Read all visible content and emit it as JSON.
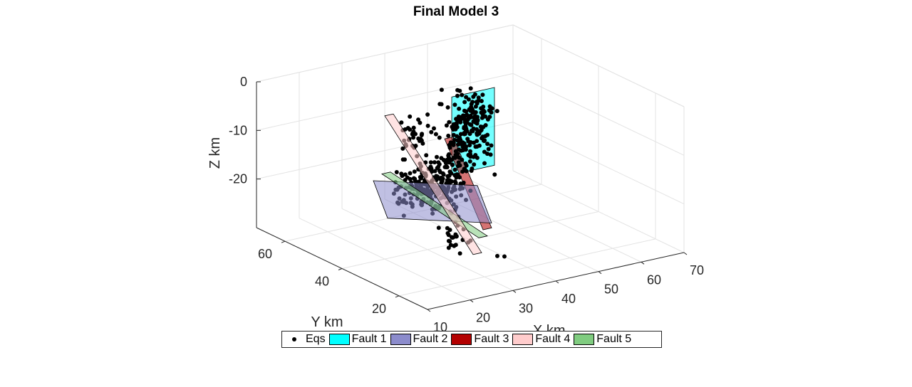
{
  "chart_data": {
    "type": "scatter3d",
    "title": "Final Model 3",
    "xlabel": "X km",
    "ylabel": "Y km",
    "zlabel": "Z km",
    "xlim": [
      10,
      70
    ],
    "ylim": [
      10,
      70
    ],
    "zlim": [
      -30,
      0
    ],
    "xticks": [
      "10",
      "20",
      "30",
      "40",
      "50",
      "60",
      "70"
    ],
    "yticks": [
      "20",
      "40",
      "60"
    ],
    "zticks": [
      "0",
      "-10",
      "-20"
    ],
    "grid": true,
    "legend_position": "bottom",
    "legend": [
      "Eqs",
      "Fault 1",
      "Fault 2",
      "Fault 3",
      "Fault 4",
      "Fault 5"
    ],
    "faults": [
      {
        "name": "Fault 1",
        "color": "#00ffff",
        "corners": [
          [
            41,
            48,
            -3
          ],
          [
            51,
            48,
            -3
          ],
          [
            51,
            48,
            -19
          ],
          [
            41,
            48,
            -19
          ]
        ]
      },
      {
        "name": "Fault 2",
        "color": "#8c8ccc",
        "corners": [
          [
            20,
            44,
            -15
          ],
          [
            35,
            30,
            -15
          ],
          [
            41,
            34,
            -25
          ],
          [
            26,
            48,
            -25
          ]
        ]
      },
      {
        "name": "Fault 3",
        "color": "#b30000",
        "corners": [
          [
            34,
            40,
            -8
          ],
          [
            36,
            40,
            -8
          ],
          [
            41,
            34,
            -26
          ],
          [
            39,
            34,
            -26
          ]
        ]
      },
      {
        "name": "Fault 4",
        "color": "#ffcccc",
        "corners": [
          [
            24,
            46,
            -3
          ],
          [
            26,
            46,
            -3
          ],
          [
            36,
            30,
            -29
          ],
          [
            34,
            30,
            -29
          ]
        ]
      },
      {
        "name": "Fault 5",
        "color": "#80cc80",
        "corners": [
          [
            22,
            44,
            -14
          ],
          [
            24,
            44,
            -14
          ],
          [
            36,
            28,
            -25
          ],
          [
            34,
            28,
            -25
          ]
        ]
      }
    ],
    "eqs_approx_count": 520,
    "eqs_clusters": [
      {
        "center": [
          44,
          47,
          -10
        ],
        "spread": [
          4,
          2,
          5
        ],
        "count": 200
      },
      {
        "center": [
          34,
          40,
          -17
        ],
        "spread": [
          4,
          3,
          4
        ],
        "count": 170
      },
      {
        "center": [
          27,
          40,
          -17
        ],
        "spread": [
          3,
          4,
          3
        ],
        "count": 80
      },
      {
        "center": [
          30,
          44,
          -8
        ],
        "spread": [
          3,
          3,
          3
        ],
        "count": 40
      },
      {
        "center": [
          32,
          33,
          -26
        ],
        "spread": [
          2,
          2,
          2
        ],
        "count": 25
      }
    ],
    "eqs_outliers": [
      [
        39,
        29,
        -30
      ],
      [
        40,
        28,
        -30
      ]
    ]
  }
}
